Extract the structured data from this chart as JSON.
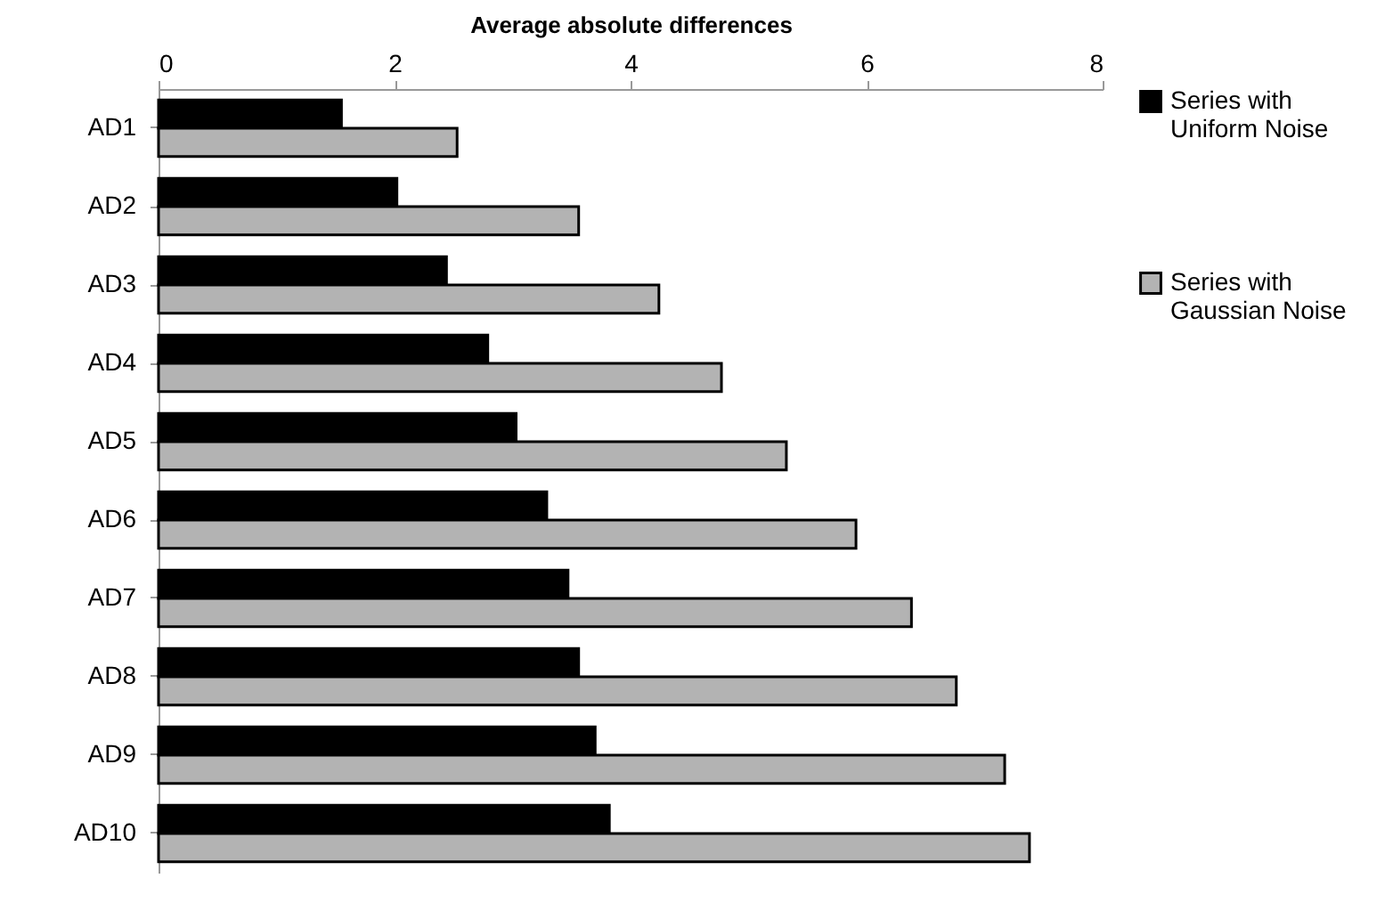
{
  "chart_data": {
    "type": "bar",
    "orientation": "horizontal",
    "xlabel": "Average absolute differences",
    "categories": [
      "AD1",
      "AD2",
      "AD3",
      "AD4",
      "AD5",
      "AD6",
      "AD7",
      "AD8",
      "AD9",
      "AD10"
    ],
    "series": [
      {
        "name": "Series with Uniform Noise",
        "color": "#000000",
        "values": [
          1.55,
          2.02,
          2.44,
          2.79,
          3.03,
          3.29,
          3.47,
          3.56,
          3.7,
          3.82
        ]
      },
      {
        "name": "Series with Gaussian Noise",
        "color": "#b3b3b3",
        "values": [
          2.53,
          3.56,
          4.24,
          4.77,
          5.32,
          5.91,
          6.38,
          6.76,
          7.17,
          7.38
        ]
      }
    ],
    "xlim": [
      0,
      8
    ],
    "xticks": [
      0,
      2,
      4,
      6,
      8
    ],
    "grid": false,
    "legend": "right"
  }
}
